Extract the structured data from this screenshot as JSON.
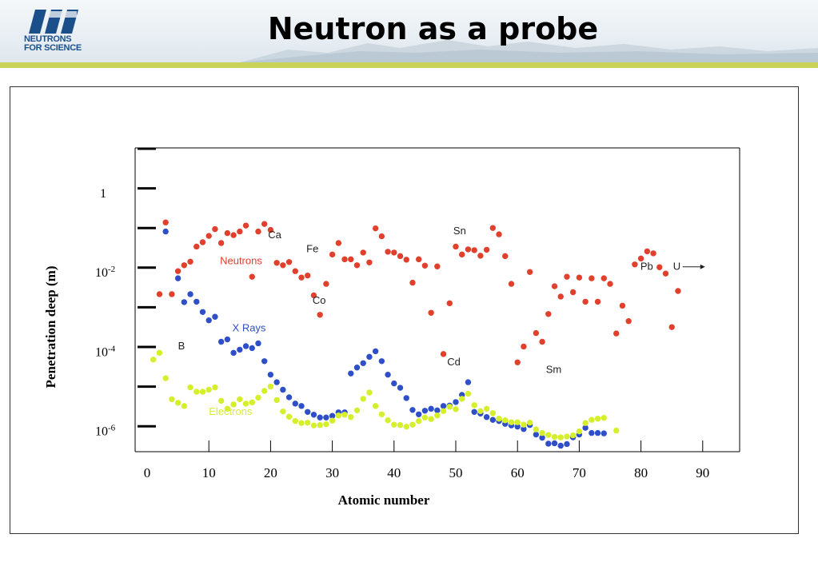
{
  "header": {
    "title": "Neutron as a probe",
    "logo_text_1": "NEUTRONS",
    "logo_text_2": "FOR SCIENCE",
    "logo_mark": "ill"
  },
  "colors": {
    "neutrons": "#e0402c",
    "xrays": "#2f4fc8",
    "electrons": "#d6ef2c",
    "stripe": "#c9d35a",
    "logo": "#1b4f8a"
  },
  "chart_data": {
    "type": "scatter",
    "title": "",
    "xlabel": "Atomic number",
    "ylabel": "Penetration deep (m)",
    "x_ticks": [
      {
        "value": 0,
        "label": "0"
      },
      {
        "value": 10,
        "label": "10"
      },
      {
        "value": 20,
        "label": "20"
      },
      {
        "value": 30,
        "label": "30"
      },
      {
        "value": 40,
        "label": "40"
      },
      {
        "value": 50,
        "label": "50"
      },
      {
        "value": 60,
        "label": "60"
      },
      {
        "value": 70,
        "label": "70"
      },
      {
        "value": 80,
        "label": "80"
      },
      {
        "value": 90,
        "label": "90"
      }
    ],
    "y_scale": "log10",
    "y_ticks": [
      {
        "exp": 0,
        "base": "1",
        "sup": ""
      },
      {
        "exp": -2,
        "base": "10",
        "sup": "-2"
      },
      {
        "exp": -4,
        "base": "10",
        "sup": "-4"
      },
      {
        "exp": -6,
        "base": "10",
        "sup": "-6"
      }
    ],
    "xlim": [
      0,
      95
    ],
    "ylim_exp": [
      -6.5,
      1.1
    ],
    "series": [
      {
        "name": "Neutrons",
        "color": "#e0402c",
        "points": [
          [
            2,
            -2.56
          ],
          [
            3,
            -0.75
          ],
          [
            4,
            -2.56
          ],
          [
            5,
            -1.98
          ],
          [
            6,
            -1.83
          ],
          [
            7,
            -1.74
          ],
          [
            8,
            -1.36
          ],
          [
            9,
            -1.25
          ],
          [
            10,
            -1.09
          ],
          [
            11,
            -0.92
          ],
          [
            12,
            -1.27
          ],
          [
            13,
            -1.02
          ],
          [
            14,
            -1.07
          ],
          [
            15,
            -0.98
          ],
          [
            16,
            -0.83
          ],
          [
            17,
            -2.12
          ],
          [
            18,
            -0.98
          ],
          [
            19,
            -0.79
          ],
          [
            20,
            -0.94
          ],
          [
            21,
            -1.77
          ],
          [
            22,
            -1.83
          ],
          [
            23,
            -1.75
          ],
          [
            24,
            -1.98
          ],
          [
            25,
            -2.14
          ],
          [
            26,
            -2.09
          ],
          [
            27,
            -2.59
          ],
          [
            28,
            -3.08
          ],
          [
            29,
            -2.3
          ],
          [
            30,
            -1.56
          ],
          [
            31,
            -1.27
          ],
          [
            32,
            -1.68
          ],
          [
            33,
            -1.68
          ],
          [
            34,
            -1.83
          ],
          [
            35,
            -1.51
          ],
          [
            36,
            -1.76
          ],
          [
            37,
            -0.9
          ],
          [
            38,
            -1.1
          ],
          [
            39,
            -1.49
          ],
          [
            40,
            -1.51
          ],
          [
            41,
            -1.6
          ],
          [
            42,
            -1.69
          ],
          [
            43,
            -2.27
          ],
          [
            44,
            -1.68
          ],
          [
            45,
            -1.84
          ],
          [
            46,
            -3.03
          ],
          [
            47,
            -1.86
          ],
          [
            48,
            -4.07
          ],
          [
            49,
            -2.79
          ],
          [
            50,
            -1.36
          ],
          [
            51,
            -1.56
          ],
          [
            52,
            -1.43
          ],
          [
            53,
            -1.45
          ],
          [
            54,
            -1.59
          ],
          [
            55,
            -1.44
          ],
          [
            56,
            -0.89
          ],
          [
            57,
            -1.05
          ],
          [
            58,
            -1.6
          ],
          [
            59,
            -2.3
          ],
          [
            60,
            -4.28
          ],
          [
            61,
            -3.88
          ],
          [
            62,
            -2.0
          ],
          [
            63,
            -3.54
          ],
          [
            64,
            -3.76
          ],
          [
            65,
            -3.06
          ],
          [
            66,
            -2.36
          ],
          [
            67,
            -2.62
          ],
          [
            68,
            -2.12
          ],
          [
            69,
            -2.51
          ],
          [
            70,
            -2.14
          ],
          [
            71,
            -2.75
          ],
          [
            72,
            -2.16
          ],
          [
            73,
            -2.75
          ],
          [
            74,
            -2.16
          ],
          [
            75,
            -2.3
          ],
          [
            76,
            -3.55
          ],
          [
            77,
            -2.85
          ],
          [
            78,
            -3.24
          ],
          [
            79,
            -1.81
          ],
          [
            80,
            -1.66
          ],
          [
            81,
            -1.48
          ],
          [
            82,
            -1.53
          ],
          [
            83,
            -1.88
          ],
          [
            84,
            -2.04
          ],
          [
            85,
            -3.39
          ],
          [
            86,
            -2.48
          ]
        ]
      },
      {
        "name": "X Rays",
        "color": "#2f4fc8",
        "points": [
          [
            3,
            -0.98
          ],
          [
            5,
            -2.16
          ],
          [
            6,
            -2.76
          ],
          [
            7,
            -2.56
          ],
          [
            8,
            -2.75
          ],
          [
            9,
            -3.01
          ],
          [
            10,
            -3.22
          ],
          [
            11,
            -3.13
          ],
          [
            12,
            -3.76
          ],
          [
            13,
            -3.7
          ],
          [
            14,
            -4.04
          ],
          [
            15,
            -3.96
          ],
          [
            16,
            -3.87
          ],
          [
            17,
            -3.92
          ],
          [
            18,
            -3.8
          ],
          [
            19,
            -4.25
          ],
          [
            20,
            -4.59
          ],
          [
            21,
            -4.78
          ],
          [
            22,
            -4.97
          ],
          [
            23,
            -5.16
          ],
          [
            24,
            -5.32
          ],
          [
            25,
            -5.38
          ],
          [
            26,
            -5.53
          ],
          [
            27,
            -5.6
          ],
          [
            28,
            -5.67
          ],
          [
            29,
            -5.67
          ],
          [
            30,
            -5.63
          ],
          [
            31,
            -5.54
          ],
          [
            32,
            -5.54
          ],
          [
            33,
            -4.56
          ],
          [
            34,
            -4.41
          ],
          [
            35,
            -4.3
          ],
          [
            36,
            -4.14
          ],
          [
            37,
            -4.0
          ],
          [
            38,
            -4.25
          ],
          [
            39,
            -4.59
          ],
          [
            40,
            -4.81
          ],
          [
            41,
            -4.92
          ],
          [
            42,
            -5.18
          ],
          [
            43,
            -5.48
          ],
          [
            44,
            -5.59
          ],
          [
            45,
            -5.5
          ],
          [
            46,
            -5.45
          ],
          [
            47,
            -5.49
          ],
          [
            48,
            -5.38
          ],
          [
            49,
            -5.37
          ],
          [
            50,
            -5.28
          ],
          [
            51,
            -5.1
          ],
          [
            52,
            -4.78
          ],
          [
            53,
            -5.53
          ],
          [
            54,
            -5.57
          ],
          [
            55,
            -5.66
          ],
          [
            56,
            -5.73
          ],
          [
            57,
            -5.76
          ],
          [
            58,
            -5.83
          ],
          [
            59,
            -5.87
          ],
          [
            60,
            -5.9
          ],
          [
            61,
            -5.96
          ],
          [
            62,
            -5.86
          ],
          [
            63,
            -6.1
          ],
          [
            64,
            -6.18
          ],
          [
            65,
            -6.33
          ],
          [
            66,
            -6.32
          ],
          [
            67,
            -6.38
          ],
          [
            68,
            -6.34
          ],
          [
            69,
            -6.17
          ],
          [
            70,
            -6.1
          ],
          [
            71,
            -5.93
          ],
          [
            72,
            -6.06
          ],
          [
            73,
            -6.06
          ],
          [
            74,
            -6.07
          ]
        ]
      },
      {
        "name": "Electrons",
        "color": "#d6ef2c",
        "points": [
          [
            1,
            -4.21
          ],
          [
            2,
            -4.04
          ],
          [
            3,
            -4.68
          ],
          [
            4,
            -5.21
          ],
          [
            5,
            -5.3
          ],
          [
            6,
            -5.38
          ],
          [
            7,
            -4.91
          ],
          [
            8,
            -5.02
          ],
          [
            9,
            -5.02
          ],
          [
            10,
            -4.97
          ],
          [
            11,
            -4.91
          ],
          [
            12,
            -5.25
          ],
          [
            13,
            -5.45
          ],
          [
            14,
            -5.34
          ],
          [
            15,
            -5.21
          ],
          [
            16,
            -5.32
          ],
          [
            17,
            -5.29
          ],
          [
            18,
            -5.17
          ],
          [
            19,
            -5.0
          ],
          [
            20,
            -4.89
          ],
          [
            21,
            -5.23
          ],
          [
            22,
            -5.52
          ],
          [
            23,
            -5.65
          ],
          [
            24,
            -5.76
          ],
          [
            25,
            -5.81
          ],
          [
            26,
            -5.8
          ],
          [
            27,
            -5.87
          ],
          [
            28,
            -5.86
          ],
          [
            29,
            -5.84
          ],
          [
            30,
            -5.75
          ],
          [
            31,
            -5.62
          ],
          [
            32,
            -5.6
          ],
          [
            33,
            -5.66
          ],
          [
            34,
            -5.49
          ],
          [
            35,
            -5.2
          ],
          [
            36,
            -5.04
          ],
          [
            37,
            -5.38
          ],
          [
            38,
            -5.59
          ],
          [
            39,
            -5.74
          ],
          [
            40,
            -5.85
          ],
          [
            41,
            -5.86
          ],
          [
            42,
            -5.9
          ],
          [
            43,
            -5.85
          ],
          [
            44,
            -5.76
          ],
          [
            45,
            -5.67
          ],
          [
            46,
            -5.71
          ],
          [
            47,
            -5.62
          ],
          [
            48,
            -5.51
          ],
          [
            49,
            -5.4
          ],
          [
            50,
            -5.46
          ],
          [
            51,
            -5.2
          ],
          [
            52,
            -5.07
          ],
          [
            53,
            -5.36
          ],
          [
            54,
            -5.51
          ],
          [
            55,
            -5.45
          ],
          [
            56,
            -5.56
          ],
          [
            57,
            -5.7
          ],
          [
            58,
            -5.74
          ],
          [
            59,
            -5.79
          ],
          [
            60,
            -5.79
          ],
          [
            61,
            -5.85
          ],
          [
            62,
            -5.8
          ],
          [
            63,
            -5.97
          ],
          [
            64,
            -6.06
          ],
          [
            65,
            -6.11
          ],
          [
            66,
            -6.16
          ],
          [
            67,
            -6.17
          ],
          [
            68,
            -6.15
          ],
          [
            69,
            -6.12
          ],
          [
            70,
            -6.02
          ],
          [
            71,
            -5.81
          ],
          [
            72,
            -5.73
          ],
          [
            73,
            -5.7
          ],
          [
            74,
            -5.68
          ],
          [
            76,
            -6.0
          ]
        ]
      }
    ],
    "annotations": [
      {
        "text": "Neutrons",
        "x": 11.8,
        "y": -1.8,
        "color": "#e0402c"
      },
      {
        "text": "X Rays",
        "x": 13.8,
        "y": -3.5,
        "color": "#2f4fc8"
      },
      {
        "text": "Electrons",
        "x": 10.0,
        "y": -5.6,
        "color": "#d6ef2c"
      },
      {
        "text": "Ca",
        "x": 19.6,
        "y": -1.15,
        "color": "#222222"
      },
      {
        "text": "Fe",
        "x": 25.8,
        "y": -1.5,
        "color": "#222222"
      },
      {
        "text": "Co",
        "x": 26.8,
        "y": -2.8,
        "color": "#222222"
      },
      {
        "text": "Sn",
        "x": 49.6,
        "y": -1.05,
        "color": "#222222"
      },
      {
        "text": "Cd",
        "x": 48.6,
        "y": -4.35,
        "color": "#222222"
      },
      {
        "text": "Sm",
        "x": 64.6,
        "y": -4.55,
        "color": "#222222"
      },
      {
        "text": "Pb",
        "x": 79.9,
        "y": -1.95,
        "color": "#222222"
      },
      {
        "text": "U",
        "x": 85.2,
        "y": -1.95,
        "color": "#222222"
      },
      {
        "text": "B",
        "x": 5.0,
        "y": -3.95,
        "color": "#222222"
      }
    ],
    "grid": false,
    "legend": "none"
  }
}
